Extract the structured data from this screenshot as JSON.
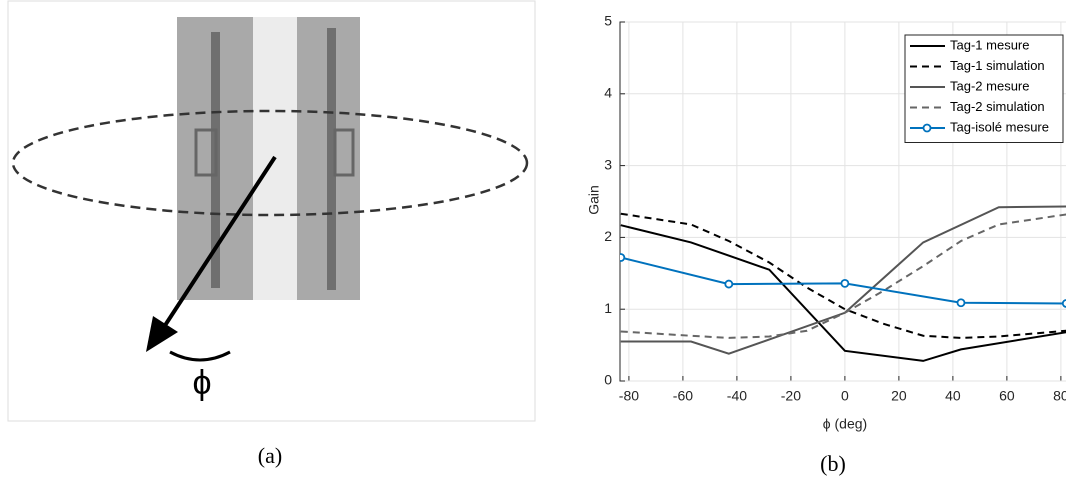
{
  "figure": {
    "photo_symbol": "ϕ",
    "captions": [
      "(a)",
      "(b)"
    ]
  },
  "chart_data": {
    "type": "line",
    "xlabel": "ϕ (deg)",
    "ylabel": "Gain",
    "xlim": [
      -83.3,
      81.9
    ],
    "ylim": [
      0,
      5
    ],
    "xticks": [
      -80,
      -60,
      -40,
      -20,
      0,
      20,
      40,
      60,
      80
    ],
    "yticks": [
      0,
      1,
      2,
      3,
      4,
      5
    ],
    "grid": true,
    "legend": "upper right",
    "series": [
      {
        "name": "Tag-1 mesure",
        "color": "#000000",
        "dash": "solid",
        "x": [
          -83,
          -57,
          -28,
          0,
          29,
          43,
          82
        ],
        "values": [
          2.17,
          1.93,
          1.55,
          0.42,
          0.28,
          0.44,
          0.68
        ]
      },
      {
        "name": "Tag-1 simulation",
        "color": "#000000",
        "dash": "dashed",
        "x": [
          -83,
          -57,
          -43,
          -28,
          -14,
          0,
          14,
          29,
          43,
          57,
          82
        ],
        "values": [
          2.33,
          2.18,
          1.95,
          1.65,
          1.3,
          1.0,
          0.8,
          0.63,
          0.6,
          0.62,
          0.7
        ]
      },
      {
        "name": "Tag-2 mesure",
        "color": "#555555",
        "dash": "solid",
        "x": [
          -83,
          -57,
          -43,
          0,
          29,
          57,
          82
        ],
        "values": [
          0.55,
          0.55,
          0.38,
          0.95,
          1.93,
          2.42,
          2.43
        ]
      },
      {
        "name": "Tag-2 simulation",
        "color": "#666666",
        "dash": "dashed",
        "x": [
          -83,
          -57,
          -43,
          -28,
          -14,
          0,
          14,
          29,
          43,
          57,
          82
        ],
        "values": [
          0.69,
          0.63,
          0.6,
          0.62,
          0.7,
          0.95,
          1.25,
          1.6,
          1.95,
          2.18,
          2.32
        ]
      },
      {
        "name": "Tag-isolé mesure",
        "color": "#0072bd",
        "dash": "solid",
        "marker": "circle",
        "x": [
          -83,
          -43,
          0,
          43,
          82
        ],
        "values": [
          1.72,
          1.35,
          1.36,
          1.09,
          1.08
        ]
      }
    ]
  }
}
